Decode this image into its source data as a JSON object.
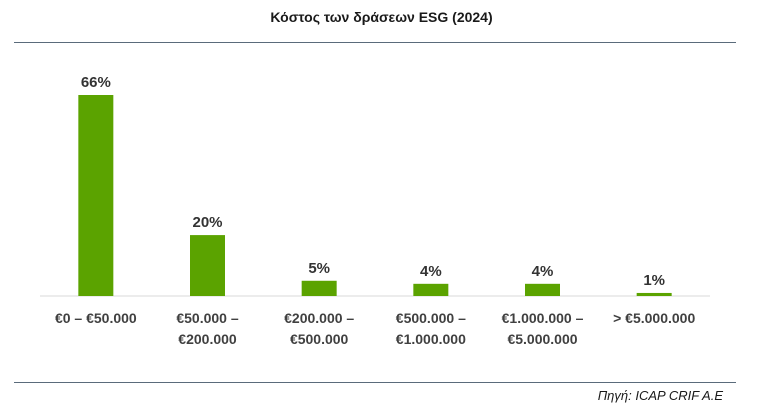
{
  "chart_data": {
    "type": "bar",
    "title": "Κόστος των δράσεων ESG (2024)",
    "categories": [
      [
        "€0 – €50.000"
      ],
      [
        "€50.000 –",
        "€200.000"
      ],
      [
        "€200.000 –",
        "€500.000"
      ],
      [
        "€500.000 –",
        "€1.000.000"
      ],
      [
        "€1.000.000 –",
        "€5.000.000"
      ],
      [
        "> €5.000.000"
      ]
    ],
    "values": [
      66,
      20,
      5,
      4,
      4,
      1
    ],
    "value_labels": [
      "66%",
      "20%",
      "5%",
      "4%",
      "4%",
      "1%"
    ],
    "ylim": [
      0,
      66
    ],
    "grid": false,
    "bar_color": "#5ba300",
    "axis_color": "#d9d9d9"
  },
  "source": "Πηγή: ICAP CRIF A.E"
}
